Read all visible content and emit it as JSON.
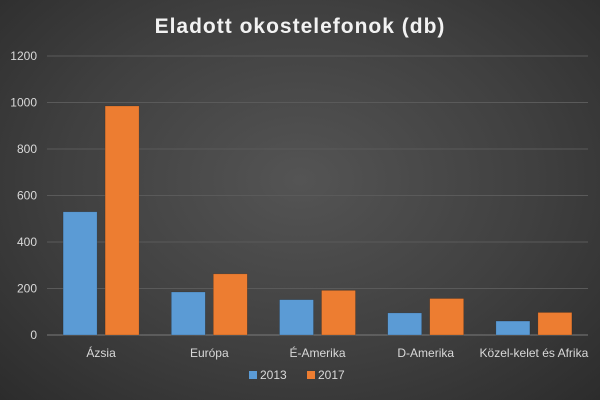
{
  "chart_data": {
    "type": "bar",
    "title": "Eladott okostelefonok (db)",
    "xlabel": "",
    "ylabel": "",
    "categories": [
      "Ázsia",
      "Európa",
      "É-Amerika",
      "D-Amerika",
      "Közel-kelet és Afrika"
    ],
    "series": [
      {
        "name": "2013",
        "values": [
          530,
          185,
          152,
          95,
          60
        ]
      },
      {
        "name": "2017",
        "values": [
          985,
          263,
          192,
          157,
          97
        ]
      }
    ],
    "ylim": [
      0,
      1200
    ],
    "yticks": [
      0,
      200,
      400,
      600,
      800,
      1000,
      1200
    ],
    "grid": true,
    "legend_position": "bottom"
  },
  "colors": {
    "series": [
      "#5b9bd5",
      "#ed7d31"
    ],
    "background": "#404040",
    "grid": "#5a5a5a",
    "text": "#d9d9d9",
    "title": "#f2f2f2"
  }
}
